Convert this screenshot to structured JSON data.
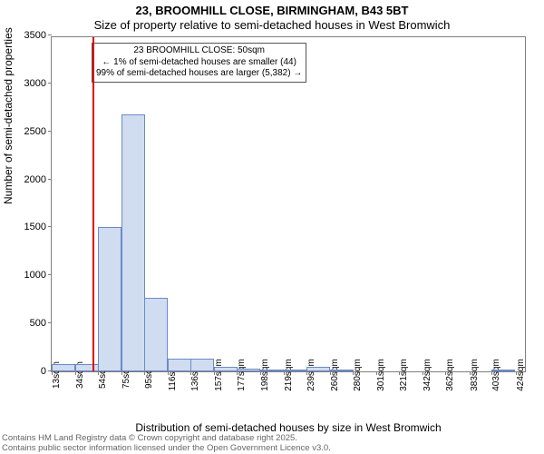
{
  "title": {
    "main": "23, BROOMHILL CLOSE, BIRMINGHAM, B43 5BT",
    "sub": "Size of property relative to semi-detached houses in West Bromwich",
    "fontsize_main": 13,
    "fontsize_sub": 13
  },
  "chart": {
    "type": "histogram",
    "ylabel": "Number of semi-detached properties",
    "xlabel": "Distribution of semi-detached houses by size in West Bromwich",
    "label_fontsize": 12,
    "ylim": [
      0,
      3500
    ],
    "ytick_step": 500,
    "yticks": [
      0,
      500,
      1000,
      1500,
      2000,
      2500,
      3000,
      3500
    ],
    "xlim": [
      13,
      434
    ],
    "xticks": [
      13,
      34,
      54,
      75,
      95,
      116,
      136,
      157,
      177,
      198,
      219,
      239,
      260,
      280,
      301,
      321,
      342,
      362,
      383,
      403,
      424
    ],
    "xtick_suffix": "sqm",
    "tick_fontsize": 11,
    "xtick_fontsize": 10,
    "bar_width_units": 20.5,
    "bar_color": "#d0dcf0",
    "bar_border_color": "#6a8bc8",
    "background_color": "#ffffff",
    "border_color": "#7f7f7f",
    "marker_line": {
      "x": 50,
      "color": "#e00000",
      "width": 2
    },
    "bars": [
      {
        "x_start": 13,
        "value": 80
      },
      {
        "x_start": 34,
        "value": 80
      },
      {
        "x_start": 54,
        "value": 1500
      },
      {
        "x_start": 75,
        "value": 2680
      },
      {
        "x_start": 95,
        "value": 770
      },
      {
        "x_start": 116,
        "value": 130
      },
      {
        "x_start": 136,
        "value": 130
      },
      {
        "x_start": 157,
        "value": 50
      },
      {
        "x_start": 177,
        "value": 30
      },
      {
        "x_start": 198,
        "value": 20
      },
      {
        "x_start": 219,
        "value": 10
      },
      {
        "x_start": 239,
        "value": 50
      },
      {
        "x_start": 260,
        "value": 5
      },
      {
        "x_start": 403,
        "value": 5
      }
    ],
    "annotation": {
      "line1": "23 BROOMHILL CLOSE: 50sqm",
      "line2": "← 1% of semi-detached houses are smaller (44)",
      "line3": "99% of semi-detached houses are larger (5,382) →",
      "box_border": "#555555",
      "box_bg": "#ffffff",
      "fontsize": 10
    }
  },
  "footer": {
    "line1": "Contains HM Land Registry data © Crown copyright and database right 2025.",
    "line2": "Contains public sector information licensed under the Open Government Licence v3.0.",
    "color": "#666666",
    "fontsize": 9.5
  }
}
